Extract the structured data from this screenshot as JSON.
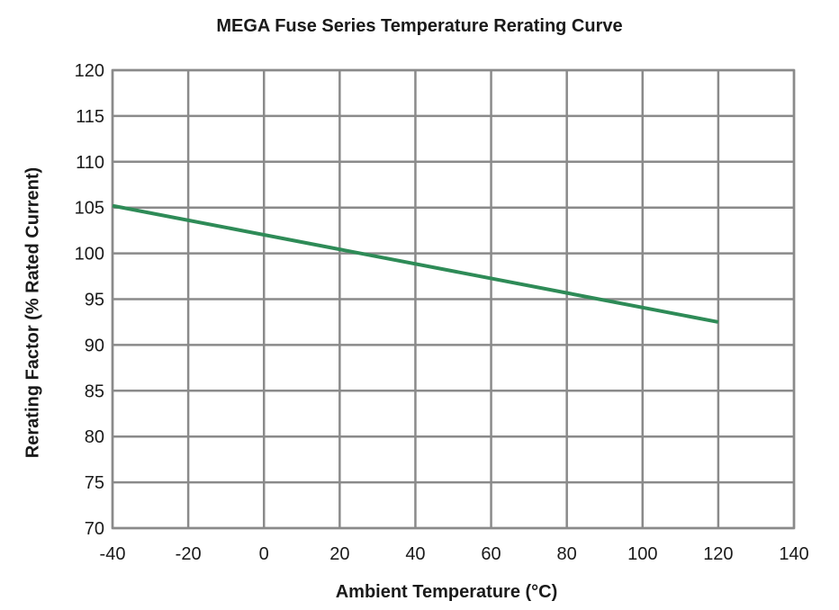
{
  "chart_data": {
    "type": "line",
    "title": "MEGA Fuse Series Temperature Rerating Curve",
    "xlabel": "Ambient Temperature (°C)",
    "ylabel": "Rerating Factor (% Rated Current)",
    "xlim": [
      -40,
      140
    ],
    "ylim": [
      70,
      120
    ],
    "xticks": [
      -40,
      -20,
      0,
      20,
      40,
      60,
      80,
      100,
      120,
      140
    ],
    "yticks": [
      70,
      75,
      80,
      85,
      90,
      95,
      100,
      105,
      110,
      115,
      120
    ],
    "grid": true,
    "series": [
      {
        "color": "#2e8b57",
        "x": [
          -40,
          120
        ],
        "y": [
          105.2,
          92.5
        ]
      }
    ]
  }
}
